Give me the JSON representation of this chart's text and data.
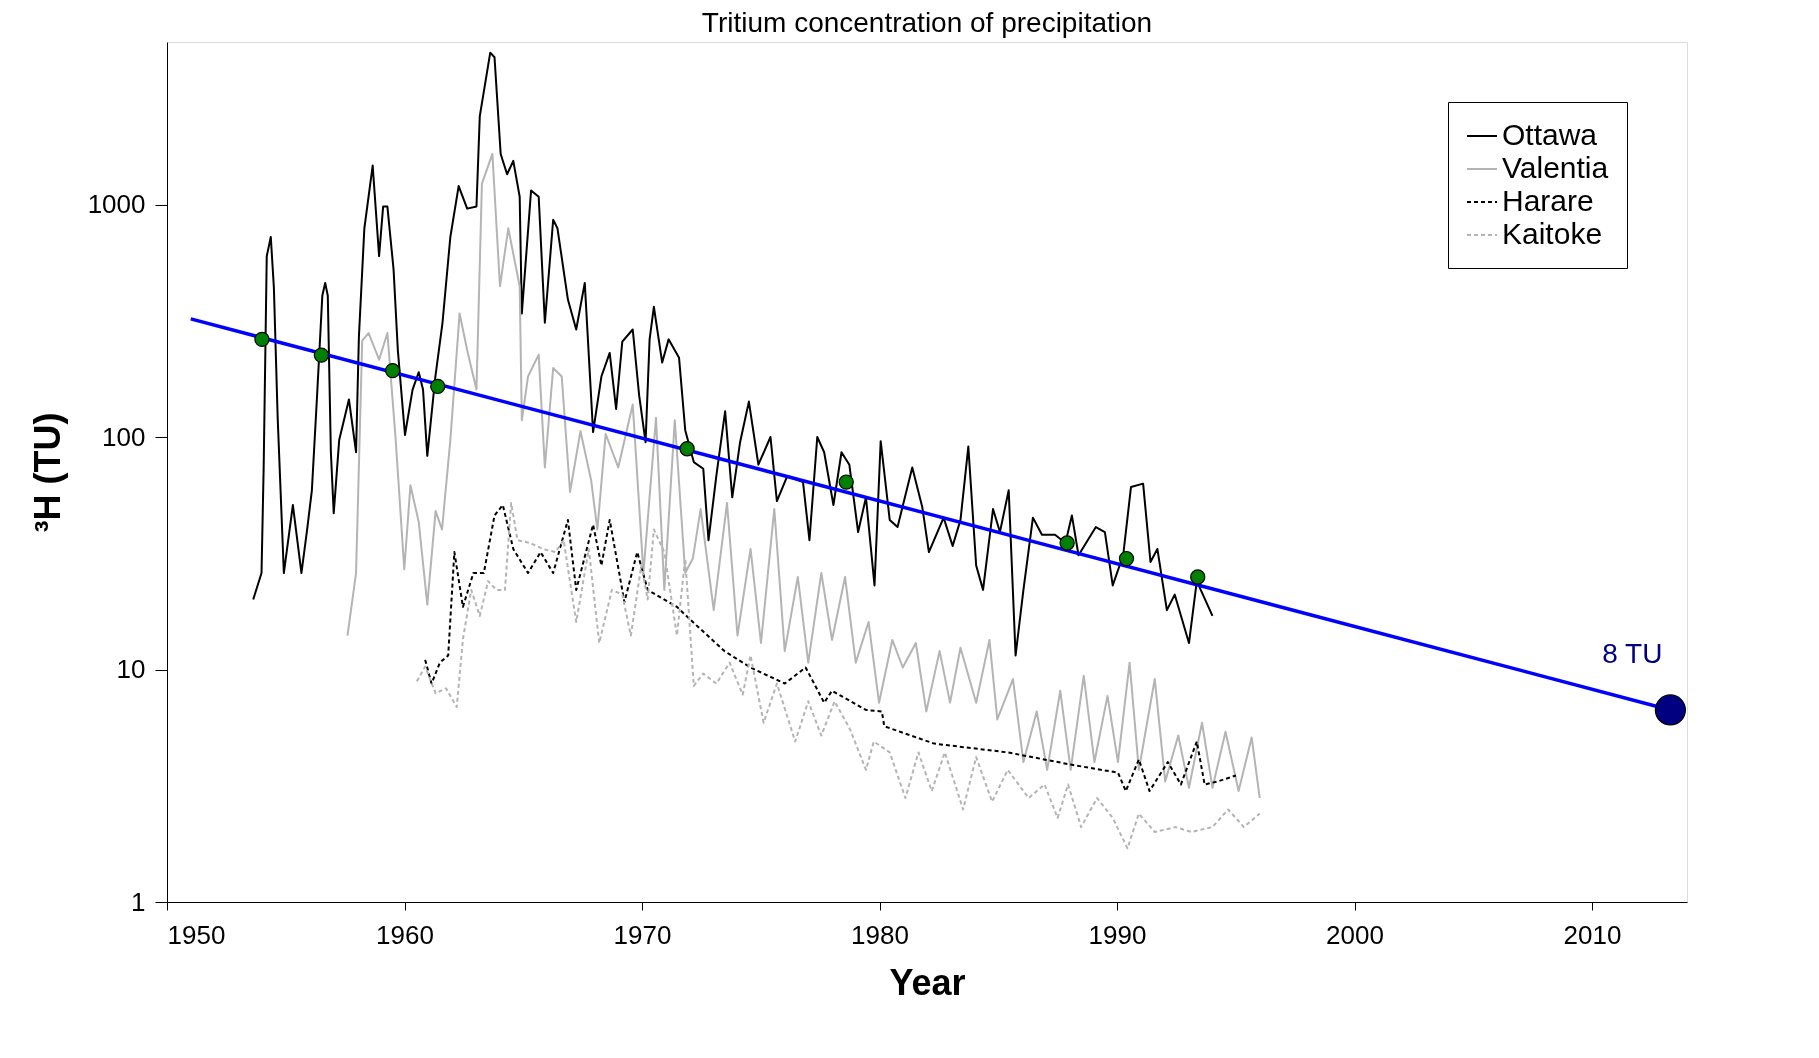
{
  "chart_data": {
    "type": "line",
    "title": "Tritium concentration of precipitation",
    "xlabel": "Year",
    "ylabel": "³H (TU)",
    "log": true,
    "grid": false,
    "legend": "top right",
    "xlim": [
      1950,
      2014
    ],
    "xticks": [
      1950,
      1960,
      1970,
      1980,
      1990,
      2000,
      2010
    ],
    "ylim": [
      1,
      5000
    ],
    "yticks": [
      1,
      10,
      100,
      1000
    ],
    "series": [
      {
        "name": "Ottawa",
        "color": "#000000",
        "line_style": "solid",
        "x": [
          1953.63,
          1953.98,
          1954.07,
          1954.2,
          1954.37,
          1954.5,
          1954.66,
          1954.92,
          1955.3,
          1955.66,
          1955.9,
          1956.1,
          1956.31,
          1956.54,
          1956.66,
          1956.77,
          1956.9,
          1957.02,
          1957.25,
          1957.66,
          1957.96,
          1958.08,
          1958.31,
          1958.66,
          1958.93,
          1959.1,
          1959.28,
          1959.54,
          1959.72,
          1960.02,
          1960.34,
          1960.6,
          1960.78,
          1960.96,
          1961.3,
          1961.6,
          1961.93,
          1962.28,
          1962.64,
          1963.03,
          1963.17,
          1963.61,
          1963.79,
          1964.05,
          1964.32,
          1964.58,
          1964.85,
          1964.94,
          1965.33,
          1965.65,
          1965.91,
          1966.26,
          1966.44,
          1966.88,
          1967.23,
          1967.59,
          1967.94,
          1968.29,
          1968.64,
          1968.91,
          1969.17,
          1969.61,
          1969.88,
          1970.15,
          1970.32,
          1970.5,
          1970.85,
          1971.12,
          1971.56,
          1971.82,
          1972.18,
          1972.58,
          1972.8,
          1973.13,
          1973.5,
          1973.8,
          1974.13,
          1974.5,
          1974.9,
          1975.41,
          1975.68,
          1976.12,
          1976.78,
          1977.05,
          1977.38,
          1977.67,
          1978.06,
          1978.4,
          1978.73,
          1979.1,
          1979.43,
          1979.79,
          1980.05,
          1980.43,
          1980.76,
          1981.38,
          1981.8,
          1982.08,
          1982.7,
          1983.08,
          1983.41,
          1983.74,
          1984.07,
          1984.36,
          1984.78,
          1985.07,
          1985.44,
          1985.73,
          1986.06,
          1986.46,
          1986.84,
          1987.39,
          1987.83,
          1988.1,
          1988.38,
          1989.11,
          1989.49,
          1989.82,
          1990.26,
          1990.59,
          1991.1,
          1991.41,
          1991.7,
          1992.1,
          1992.43,
          1993.03,
          1993.36,
          1994.02
        ],
        "values": [
          20,
          26,
          74,
          600,
          725,
          440,
          121,
          26,
          51,
          26,
          40,
          59,
          145,
          405,
          460,
          405,
          86,
          47,
          97,
          145,
          86,
          270,
          790,
          1470,
          600,
          980,
          980,
          525,
          236,
          102,
          160,
          190,
          160,
          83,
          182,
          310,
          725,
          1200,
          960,
          980,
          2400,
          4500,
          4300,
          1650,
          1350,
          1540,
          1080,
          340,
          1150,
          1080,
          310,
          860,
          790,
          390,
          290,
          460,
          105,
          182,
          230,
          132,
          257,
          290,
          151,
          95,
          263,
          363,
          209,
          263,
          219,
          107,
          78,
          73,
          36,
          68,
          129,
          55,
          95,
          142,
          76,
          100,
          53,
          68,
          64,
          36,
          100,
          86,
          51,
          86,
          76,
          39,
          55,
          23,
          96,
          44,
          41,
          74,
          50,
          32,
          45,
          34,
          44,
          91,
          28,
          22,
          49,
          39,
          59,
          11.5,
          22,
          45,
          38,
          38,
          35,
          46,
          31,
          41,
          39,
          23,
          31,
          61,
          63,
          29,
          33,
          18,
          21,
          13,
          24,
          17
        ]
      },
      {
        "name": "Valentia",
        "color": "#b4b4b4",
        "line_style": "solid",
        "x": [
          1957.6,
          1957.96,
          1958.22,
          1958.49,
          1958.93,
          1959.28,
          1959.63,
          1959.99,
          1960.25,
          1960.6,
          1960.96,
          1961.31,
          1961.58,
          1961.93,
          1962.32,
          1962.64,
          1963.03,
          1963.26,
          1963.7,
          1964.02,
          1964.37,
          1964.85,
          1964.94,
          1965.2,
          1965.65,
          1965.91,
          1966.26,
          1966.62,
          1966.97,
          1967.41,
          1967.86,
          1968.12,
          1968.47,
          1969.0,
          1969.61,
          1970.06,
          1970.59,
          1970.94,
          1971.38,
          1971.82,
          1972.14,
          1972.47,
          1973.02,
          1973.58,
          1974.02,
          1974.57,
          1975.01,
          1975.57,
          1976.01,
          1976.56,
          1977.0,
          1977.55,
          1978.0,
          1978.55,
          1979.0,
          1979.54,
          1979.98,
          1980.54,
          1980.98,
          1981.53,
          1981.97,
          1982.53,
          1982.97,
          1983.41,
          1984.07,
          1984.63,
          1984.96,
          1985.62,
          1986.06,
          1986.62,
          1987.06,
          1987.61,
          1988.05,
          1988.6,
          1989.05,
          1989.6,
          1990.04,
          1990.53,
          1990.92,
          1991.59,
          1992.03,
          1992.58,
          1993.03,
          1993.58,
          1994.02,
          1994.57,
          1995.12,
          1995.67,
          1996.01
        ],
        "values": [
          14,
          26,
          260,
          280,
          215,
          280,
          97,
          27,
          62,
          43,
          19,
          48,
          40,
          97,
          340,
          236,
          160,
          1230,
          1650,
          445,
          790,
          445,
          118,
          182,
          226,
          74,
          198,
          182,
          58,
          106,
          65,
          40,
          103,
          74,
          138,
          26,
          121,
          22,
          118,
          26,
          30,
          49,
          18,
          52,
          14,
          33,
          13,
          49,
          12,
          25,
          10.7,
          26,
          13.4,
          25,
          10.7,
          16,
          7.2,
          13.4,
          10.2,
          13,
          6.6,
          12,
          7.2,
          12.4,
          7.2,
          13.4,
          6.1,
          9.1,
          4.0,
          6.6,
          3.7,
          8.1,
          3.7,
          9.4,
          4.0,
          7.7,
          4.0,
          10.7,
          3.7,
          9.1,
          3.3,
          5.2,
          3.1,
          5.9,
          3.1,
          5.4,
          3.0,
          5.1,
          2.8
        ]
      },
      {
        "name": "Harare",
        "color": "#000000",
        "line_style": "dashed",
        "x": [
          1960.87,
          1961.14,
          1961.49,
          1961.84,
          1962.1,
          1962.46,
          1962.9,
          1963.34,
          1963.79,
          1964.14,
          1964.58,
          1965.2,
          1965.73,
          1966.26,
          1966.88,
          1967.23,
          1967.94,
          1968.29,
          1968.64,
          1969.26,
          1969.8,
          1970.24,
          1971.47,
          1972.14,
          1973.47,
          1974.57,
          1976.01,
          1976.89,
          1977.67,
          1978.0,
          1979.43,
          1980.1,
          1980.2,
          1982.3,
          1985.4,
          1988.05,
          1990.04,
          1990.37,
          1990.92,
          1991.37,
          1992.14,
          1992.69,
          1993.36,
          1993.69,
          1994.24,
          1995.01
        ],
        "values": [
          11,
          8.7,
          10.7,
          11.5,
          32,
          18.6,
          26,
          26,
          46,
          51,
          33,
          26,
          32,
          26,
          44,
          22,
          42,
          28,
          44,
          19.5,
          32,
          22,
          18.6,
          16,
          12,
          10.2,
          8.7,
          10.2,
          7.2,
          8.1,
          6.7,
          6.6,
          5.7,
          4.8,
          4.4,
          3.9,
          3.6,
          3.0,
          4.1,
          3.0,
          4.0,
          3.2,
          4.9,
          3.2,
          3.3,
          3.5
        ]
      },
      {
        "name": "Kaitoke",
        "color": "#b4b4b4",
        "line_style": "dashed",
        "x": [
          1960.52,
          1960.87,
          1961.31,
          1961.75,
          1962.2,
          1962.46,
          1962.81,
          1963.17,
          1963.52,
          1963.87,
          1964.23,
          1964.49,
          1964.76,
          1965.29,
          1965.82,
          1966.35,
          1966.7,
          1967.23,
          1967.76,
          1968.2,
          1968.73,
          1969.17,
          1969.53,
          1969.97,
          1970.24,
          1970.5,
          1970.94,
          1971.47,
          1971.82,
          1972.18,
          1972.58,
          1973.13,
          1973.69,
          1974.24,
          1974.57,
          1975.12,
          1975.68,
          1976.45,
          1977.0,
          1977.55,
          1978.11,
          1978.77,
          1979.43,
          1979.76,
          1980.43,
          1981.09,
          1981.64,
          1982.2,
          1982.75,
          1983.52,
          1984.07,
          1984.74,
          1985.4,
          1986.28,
          1986.95,
          1987.5,
          1987.94,
          1988.49,
          1989.16,
          1989.82,
          1990.44,
          1990.92,
          1991.59,
          1992.47,
          1993.13,
          1994.02,
          1994.68,
          1995.34,
          1996.01
        ],
        "values": [
          8.9,
          10.3,
          7.9,
          8.3,
          6.9,
          13.5,
          22,
          17,
          24,
          22,
          22,
          52,
          36,
          35,
          33,
          32,
          36,
          16,
          33,
          13,
          22,
          21,
          14,
          28,
          20,
          40,
          32,
          14,
          30,
          8.5,
          9.6,
          8.7,
          10.7,
          7.8,
          11.5,
          5.9,
          8.7,
          4.9,
          7.3,
          5.2,
          7.3,
          5.5,
          3.7,
          4.9,
          4.4,
          2.8,
          4.4,
          3.0,
          4.4,
          2.5,
          4.2,
          2.7,
          3.7,
          2.8,
          3.2,
          2.3,
          3.2,
          2.1,
          2.8,
          2.3,
          1.7,
          2.4,
          2.0,
          2.1,
          2.0,
          2.1,
          2.5,
          2.1,
          2.4
        ]
      },
      {
        "type": "line",
        "color": "#0000ff",
        "line_style": "solid",
        "x": [
          1951,
          2013.3
        ],
        "values": [
          322,
          6.7
        ]
      },
      {
        "type": "scatter",
        "color": "#008000",
        "marker": "circle",
        "x": [
          1954.0,
          1956.5,
          1959.5,
          1961.4,
          1971.9,
          1978.6,
          1987.9,
          1990.4,
          1993.4
        ],
        "values": [
          263,
          225,
          193,
          165,
          89,
          64,
          35,
          30,
          25
        ]
      },
      {
        "type": "scatter",
        "color": "#000080",
        "marker": "circle",
        "x": [
          2013.3
        ],
        "values": [
          6.7
        ]
      }
    ],
    "annotations": [
      {
        "text": "8 TU",
        "x": 2013.3,
        "y": 6.7
      }
    ]
  }
}
